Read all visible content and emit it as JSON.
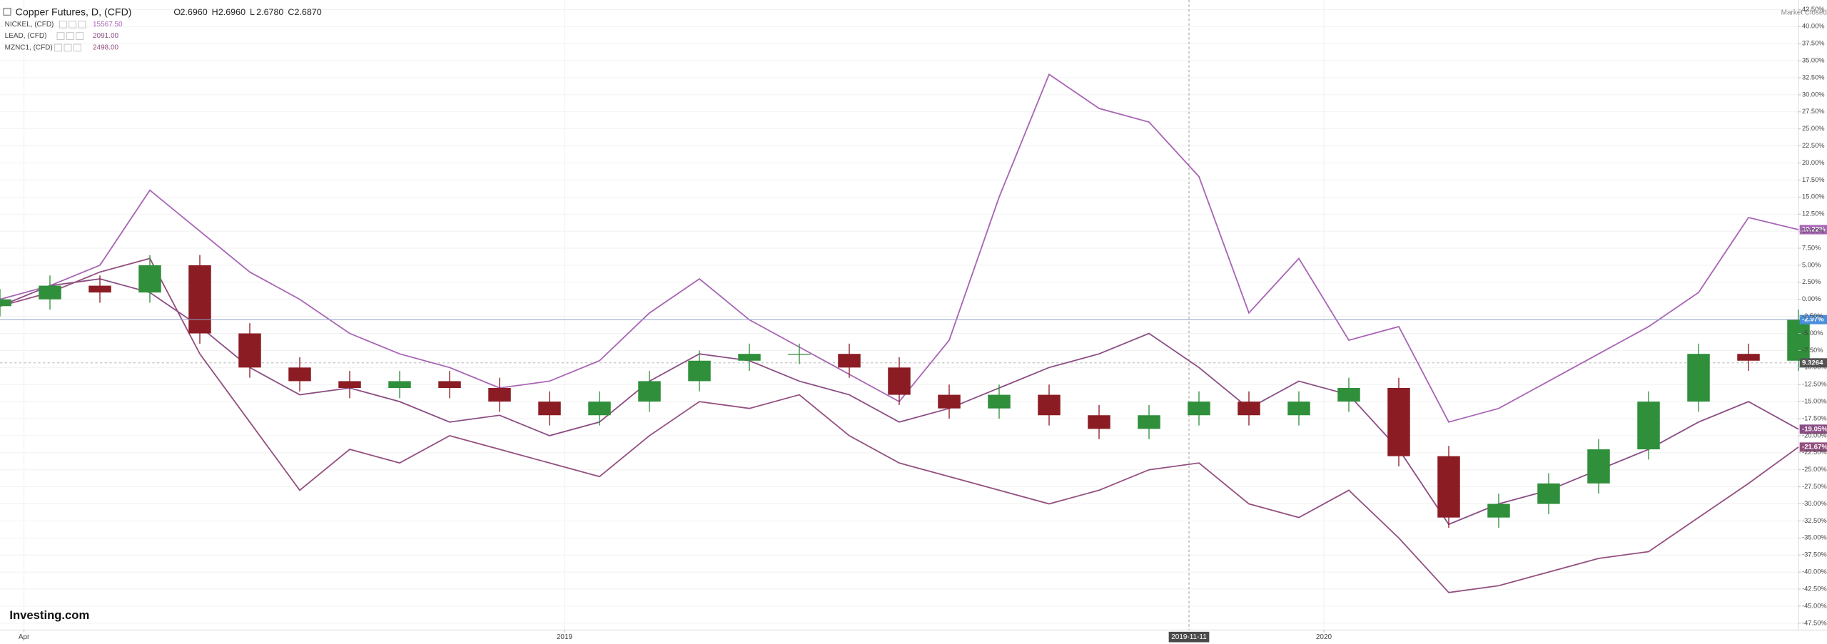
{
  "chart_data": {
    "type": "candlestick",
    "title": "Copper Futures, D, (CFD)",
    "ohlc_labels": [
      {
        "letter": "O",
        "value": "2.6960"
      },
      {
        "letter": "H",
        "value": "2.6960"
      },
      {
        "letter": "L",
        "value": "2.6780"
      },
      {
        "letter": "C",
        "value": "2.6870"
      }
    ],
    "status": "Market Closed",
    "brand": "Investing.com",
    "price_tag": "9.3264",
    "open": [
      -1,
      0,
      2,
      1,
      5,
      -5,
      -10,
      -12,
      -13,
      -12,
      -13,
      -15,
      -17,
      -15,
      -12,
      -9,
      -8,
      -8,
      -10,
      -14,
      -16,
      -14,
      -17,
      -19,
      -17,
      -15,
      -17,
      -15,
      -13,
      -23,
      -32,
      -30,
      -27,
      -22,
      -15,
      -8,
      -9
    ],
    "high": [
      1.5,
      3.5,
      3.5,
      6.5,
      6.5,
      -3.5,
      -8.5,
      -10.5,
      -10.5,
      -10.5,
      -11.5,
      -13.5,
      -13.5,
      -10.5,
      -7.5,
      -6.5,
      -6.5,
      -6.5,
      -8.5,
      -12.5,
      -12.5,
      -12.5,
      -15.5,
      -15.5,
      -13.5,
      -13.5,
      -13.5,
      -11.5,
      -11.5,
      -21.5,
      -28.5,
      -25.5,
      -20.5,
      -13.5,
      -6.5,
      -6.5,
      -1.5
    ],
    "low": [
      -2.5,
      -1.5,
      -0.5,
      -0.5,
      -6.5,
      -11.5,
      -13.5,
      -14.5,
      -14.5,
      -14.5,
      -16.5,
      -18.5,
      -18.5,
      -16.5,
      -13.5,
      -10.5,
      -9.5,
      -11.5,
      -15.5,
      -17.5,
      -17.5,
      -18.5,
      -20.5,
      -20.5,
      -18.5,
      -18.5,
      -18.5,
      -16.5,
      -24.5,
      -33.5,
      -33.5,
      -31.5,
      -28.5,
      -23.5,
      -16.5,
      -10.5,
      -10.5
    ],
    "close": [
      0,
      2,
      1,
      5,
      -5,
      -10,
      -12,
      -13,
      -12,
      -13,
      -15,
      -17,
      -15,
      -12,
      -9,
      -8,
      -8,
      -10,
      -14,
      -16,
      -14,
      -17,
      -19,
      -17,
      -15,
      -17,
      -15,
      -13,
      -23,
      -32,
      -30,
      -27,
      -22,
      -15,
      -8,
      -9,
      -2.97
    ],
    "last_label": "-2.97%",
    "up_color": "#2f8f3a",
    "down_color": "#8b1c24",
    "series": [
      {
        "name": "NICKEL, (CFD)",
        "last_price": "15567.50",
        "last_label": "10.22%",
        "color": "#a865b5",
        "values": [
          0,
          2,
          5,
          16,
          10,
          4,
          0,
          -5,
          -8,
          -10,
          -13,
          -12,
          -9,
          -2,
          3,
          -3,
          -7,
          -11,
          -15,
          -6,
          15,
          33,
          28,
          26,
          18,
          -2,
          6,
          -6,
          -4,
          -18,
          -16,
          -12,
          -8,
          -4,
          1,
          12,
          10.22
        ]
      },
      {
        "name": "LEAD, (CFD)",
        "last_price": "2091.00",
        "last_label": "-19.05%",
        "color": "#8b4d84",
        "values": [
          -1,
          2,
          3,
          1,
          -4,
          -10,
          -14,
          -13,
          -15,
          -18,
          -17,
          -20,
          -18,
          -12,
          -8,
          -9,
          -12,
          -14,
          -18,
          -16,
          -13,
          -10,
          -8,
          -5,
          -10,
          -16,
          -12,
          -14,
          -22,
          -33,
          -30,
          -28,
          -25,
          -22,
          -18,
          -15,
          -19.05
        ]
      },
      {
        "name": "MZNC1, (CFD)",
        "last_price": "2498.00",
        "last_label": "-21.67%",
        "color": "#93507f",
        "values": [
          -1,
          1,
          4,
          6,
          -8,
          -18,
          -28,
          -22,
          -24,
          -20,
          -22,
          -24,
          -26,
          -20,
          -15,
          -16,
          -14,
          -20,
          -24,
          -26,
          -28,
          -30,
          -28,
          -25,
          -24,
          -30,
          -32,
          -28,
          -35,
          -43,
          -42,
          -40,
          -38,
          -37,
          -32,
          -27,
          -21.67
        ]
      }
    ],
    "xlim": [
      0,
      36
    ],
    "xticks": [
      {
        "value": 0.48,
        "label": "Apr"
      },
      {
        "value": 11.3,
        "label": "2019"
      },
      {
        "value": 26.5,
        "label": "2020"
      }
    ],
    "crosshair": {
      "value": 23.8,
      "label": "2019-11-11"
    },
    "ylim": [
      -48.5,
      43.9
    ],
    "yticks": [
      {
        "value": 42.5,
        "label": "42.50%"
      },
      {
        "value": 40,
        "label": "40.00%"
      },
      {
        "value": 37.5,
        "label": "37.50%"
      },
      {
        "value": 35,
        "label": "35.00%"
      },
      {
        "value": 32.5,
        "label": "32.50%"
      },
      {
        "value": 30,
        "label": "30.00%"
      },
      {
        "value": 27.5,
        "label": "27.50%"
      },
      {
        "value": 25,
        "label": "25.00%"
      },
      {
        "value": 22.5,
        "label": "22.50%"
      },
      {
        "value": 20,
        "label": "20.00%"
      },
      {
        "value": 17.5,
        "label": "17.50%"
      },
      {
        "value": 15,
        "label": "15.00%"
      },
      {
        "value": 12.5,
        "label": "12.50%"
      },
      {
        "value": 10,
        "label": "10.00%"
      },
      {
        "value": 7.5,
        "label": "7.50%"
      },
      {
        "value": 5,
        "label": "5.00%"
      },
      {
        "value": 2.5,
        "label": "2.50%"
      },
      {
        "value": 0,
        "label": "0.00%"
      },
      {
        "value": -2.5,
        "label": "-2.50%"
      },
      {
        "value": -5,
        "label": "-5.00%"
      },
      {
        "value": -7.5,
        "label": "-7.50%"
      },
      {
        "value": -10,
        "label": "-10.00%"
      },
      {
        "value": -12.5,
        "label": "-12.50%"
      },
      {
        "value": -15,
        "label": "-15.00%"
      },
      {
        "value": -17.5,
        "label": "-17.50%"
      },
      {
        "value": -20,
        "label": "-20.00%"
      },
      {
        "value": -22.5,
        "label": "-22.50%"
      },
      {
        "value": -25,
        "label": "-25.00%"
      },
      {
        "value": -27.5,
        "label": "-27.50%"
      },
      {
        "value": -30,
        "label": "-30.00%"
      },
      {
        "value": -32.5,
        "label": "-32.50%"
      },
      {
        "value": -35,
        "label": "-35.00%"
      },
      {
        "value": -37.5,
        "label": "-37.50%"
      },
      {
        "value": -40,
        "label": "-40.00%"
      },
      {
        "value": -42.5,
        "label": "-42.50%"
      },
      {
        "value": -45,
        "label": "-45.00%"
      },
      {
        "value": -47.5,
        "label": "-47.50%"
      }
    ],
    "grid": true
  }
}
